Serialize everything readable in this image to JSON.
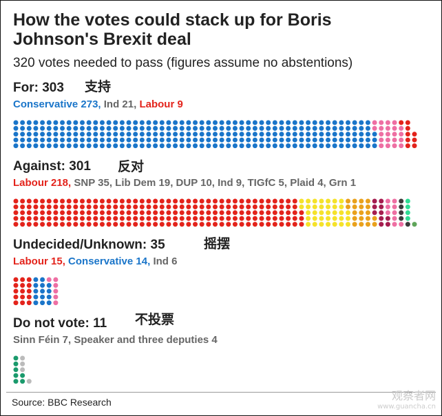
{
  "title_line1": "How the votes could stack up for Boris",
  "title_line2": "Johnson's Brexit deal",
  "subtitle": "320 votes needed to pass (figures assume no abstentions)",
  "source": "Source: BBC Research",
  "watermark": {
    "text": "观察者网",
    "url_text": "www.guancha.cn"
  },
  "chart_data": [
    {
      "type": "waffle",
      "heading": "For: 303",
      "annotation": "支持",
      "rows": 5,
      "segments": [
        {
          "label": "Conservative 273",
          "value": 273,
          "color": "#1a75c9"
        },
        {
          "label": "Ind 21",
          "value": 21,
          "color": "#ee6fa3"
        },
        {
          "label": "Labour 9",
          "value": 9,
          "color": "#e3231b"
        }
      ],
      "legend_colors": [
        "#1a75c9",
        "#666666",
        "#e3231b"
      ]
    },
    {
      "type": "waffle",
      "heading": "Against: 301",
      "annotation": "反对",
      "rows": 5,
      "segments": [
        {
          "label": "Labour 218",
          "value": 218,
          "color": "#e3231b"
        },
        {
          "label": "SNP 35",
          "value": 35,
          "color": "#f5e22a"
        },
        {
          "label": "Lib Dem 19",
          "value": 19,
          "color": "#e9a11c"
        },
        {
          "label": "DUP 10",
          "value": 10,
          "color": "#a51d4f"
        },
        {
          "label": "Ind 9",
          "value": 9,
          "color": "#ee6fa3"
        },
        {
          "label": "TIGfC 5",
          "value": 5,
          "color": "#3b3b3b"
        },
        {
          "label": "Plaid 4",
          "value": 4,
          "color": "#2fdc94"
        },
        {
          "label": "Grn 1",
          "value": 1,
          "color": "#5fa55a"
        }
      ],
      "legend_colors": [
        "#e3231b",
        "#666666",
        "#666666",
        "#666666",
        "#666666",
        "#666666",
        "#666666",
        "#666666"
      ]
    },
    {
      "type": "waffle",
      "heading": "Undecided/Unknown: 35",
      "annotation": "摇摆",
      "rows": 5,
      "segments": [
        {
          "label": "Labour 15",
          "value": 15,
          "color": "#e3231b"
        },
        {
          "label": "Conservative 14",
          "value": 14,
          "color": "#1a75c9"
        },
        {
          "label": "Ind 6",
          "value": 6,
          "color": "#ee6fa3"
        }
      ],
      "legend_colors": [
        "#e3231b",
        "#1a75c9",
        "#666666"
      ]
    },
    {
      "type": "waffle",
      "heading": "Do not vote: 11",
      "annotation": "不投票",
      "rows": 5,
      "segments": [
        {
          "label": "Sinn Féin 7",
          "value": 7,
          "color": "#1a9a6c"
        },
        {
          "label": "Speaker and three deputies 4",
          "value": 4,
          "color": "#bbbbbb"
        }
      ],
      "legend_colors": [
        "#666666",
        "#666666"
      ]
    }
  ]
}
